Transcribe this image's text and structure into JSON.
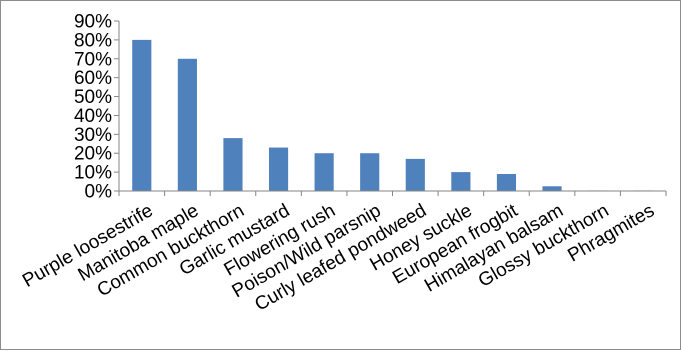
{
  "chart_data": {
    "type": "bar",
    "title": "",
    "xlabel": "",
    "ylabel": "",
    "categories": [
      "Purple loosestrife",
      "Manitoba maple",
      "Common buckthorn",
      "Garlic mustard",
      "Flowering rush",
      "Poison/Wild parsnip",
      "Curly leafed pondweed",
      "Honey suckle",
      "European frogbit",
      "Himalayan balsam",
      "Glossy buckthorn",
      "Phragmites"
    ],
    "values": [
      80,
      70,
      28,
      23,
      20,
      20,
      17,
      10,
      9,
      2.5,
      0.3,
      0.3
    ],
    "ylim": [
      0,
      90
    ],
    "yticks": [
      "0%",
      "10%",
      "20%",
      "30%",
      "40%",
      "50%",
      "60%",
      "70%",
      "80%",
      "90%"
    ],
    "grid": false,
    "legend": "none",
    "bar_color": "#4f81bd",
    "axis_color": "#868686"
  }
}
